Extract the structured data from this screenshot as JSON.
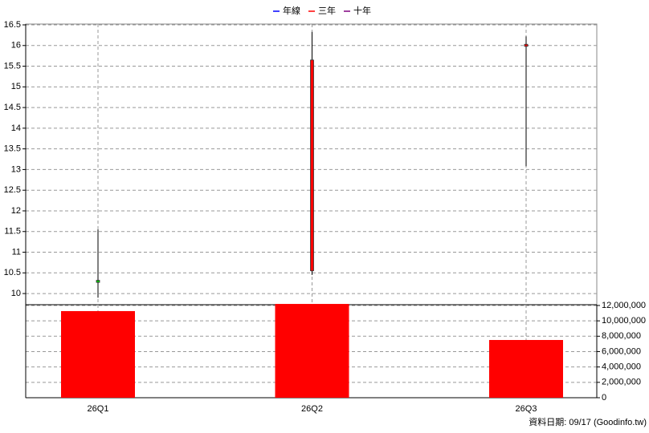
{
  "chart_data": {
    "type": "candlestick",
    "legend": [
      {
        "name": "年線",
        "color": "#0000ff"
      },
      {
        "name": "三年",
        "color": "#ff0000"
      },
      {
        "name": "十年",
        "color": "#800080"
      }
    ],
    "categories": [
      "26Q1",
      "26Q2",
      "26Q3"
    ],
    "open": [
      10.32,
      10.55,
      15.98
    ],
    "high": [
      11.55,
      16.33,
      16.22
    ],
    "low": [
      9.9,
      10.45,
      13.08
    ],
    "close": [
      10.27,
      15.65,
      16.03
    ],
    "up_color": "#ff0000",
    "down_color": "#00cc00",
    "ylim": [
      9.73,
      16.5
    ],
    "yticks": [
      10,
      10.5,
      11,
      11.5,
      12,
      12.5,
      13,
      13.5,
      14,
      14.5,
      15,
      15.5,
      16,
      16.5
    ],
    "grid": true,
    "volume": {
      "values": [
        11270000,
        12200000,
        7510000
      ],
      "color": "#ff0000",
      "ylim": [
        0,
        12100000
      ],
      "yticks": [
        0,
        {
          "value": 2000000,
          "label": "2,000,000"
        },
        {
          "value": 4000000,
          "label": "4,000,000"
        },
        {
          "value": 6000000,
          "label": "6,000,000"
        },
        {
          "value": 8000000,
          "label": "8,000,000"
        },
        {
          "value": 10000000,
          "label": "10,000,000"
        },
        {
          "value": 12000000,
          "label": "12,000,000"
        }
      ]
    },
    "footer": "資料日期: 09/17  (Goodinfo.tw)"
  }
}
